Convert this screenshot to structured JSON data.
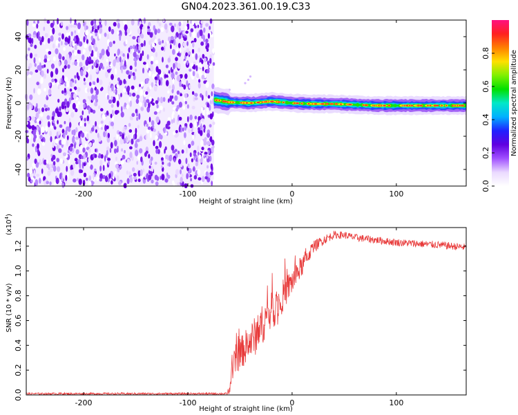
{
  "title": "GN04.2023.361.00.19.C33",
  "colors": {
    "snr_line": "#e83a3a",
    "noise_dark": "#6a00e0",
    "noise_light": "#ead9ff"
  },
  "chart_data": [
    {
      "type": "heatmap",
      "name": "spectrogram",
      "xlabel": "Height of straight line (km)",
      "ylabel": "Frequency (Hz)",
      "xlim": [
        -255,
        167
      ],
      "ylim": [
        -50,
        50
      ],
      "x_ticks": [
        -200,
        -100,
        0,
        100
      ],
      "y_ticks": [
        -40,
        -20,
        0,
        20,
        40
      ],
      "noise_region_x": [
        -255,
        -75
      ],
      "signal_track": {
        "x": [
          -75,
          -60,
          -40,
          -20,
          0,
          20,
          40,
          60,
          80,
          100,
          120,
          140,
          160,
          167
        ],
        "freq": [
          2,
          0.5,
          0,
          1,
          0,
          -0.5,
          -0.5,
          -1,
          -1.5,
          -1.5,
          -1.5,
          -1.5,
          -1.5,
          -1.5
        ]
      },
      "colorbar": {
        "label": "Normalized spectral amplitude",
        "range": [
          0,
          1
        ],
        "ticks": [
          "0.0",
          "0.2",
          "0.4",
          "0.6",
          "0.8"
        ],
        "tick_values": [
          0,
          0.2,
          0.4,
          0.6,
          0.8
        ],
        "stops": [
          "#ffffff",
          "#ead9ff",
          "#a050ff",
          "#6000e0",
          "#2020ff",
          "#00b0ff",
          "#00e8c8",
          "#00e000",
          "#80f000",
          "#ffe000",
          "#ff8000",
          "#ff2020",
          "#ff1080"
        ]
      }
    },
    {
      "type": "line",
      "name": "snr",
      "xlabel": "Height of straight line (km)",
      "ylabel": "SNR (10 * v/v)",
      "multiplier": "(x10",
      "multiplier_exp": "4",
      "multiplier_close": ")",
      "xlim": [
        -255,
        167
      ],
      "ylim": [
        0,
        1.35
      ],
      "x_ticks": [
        -200,
        -100,
        0,
        100
      ],
      "y_ticks": [
        0.0,
        0.2,
        0.4,
        0.6,
        0.8,
        1.0,
        1.2
      ],
      "y_tick_labels": [
        "0.0",
        "0.2",
        "0.4",
        "0.6",
        "0.8",
        "1.0",
        "1.2"
      ],
      "envelope": {
        "x": [
          -255,
          -62,
          -60,
          -55,
          -45,
          -35,
          -25,
          -15,
          -5,
          5,
          15,
          20,
          30,
          40,
          50,
          60,
          80,
          100,
          120,
          140,
          167
        ],
        "y": [
          0.01,
          0.01,
          0.05,
          0.28,
          0.38,
          0.48,
          0.62,
          0.72,
          0.85,
          0.98,
          1.12,
          1.19,
          1.25,
          1.29,
          1.29,
          1.27,
          1.25,
          1.23,
          1.22,
          1.21,
          1.19
        ],
        "noise": [
          0.008,
          0.008,
          0.04,
          0.12,
          0.14,
          0.16,
          0.16,
          0.15,
          0.12,
          0.1,
          0.07,
          0.05,
          0.04,
          0.03,
          0.03,
          0.03,
          0.03,
          0.03,
          0.03,
          0.03,
          0.03
        ]
      }
    }
  ]
}
